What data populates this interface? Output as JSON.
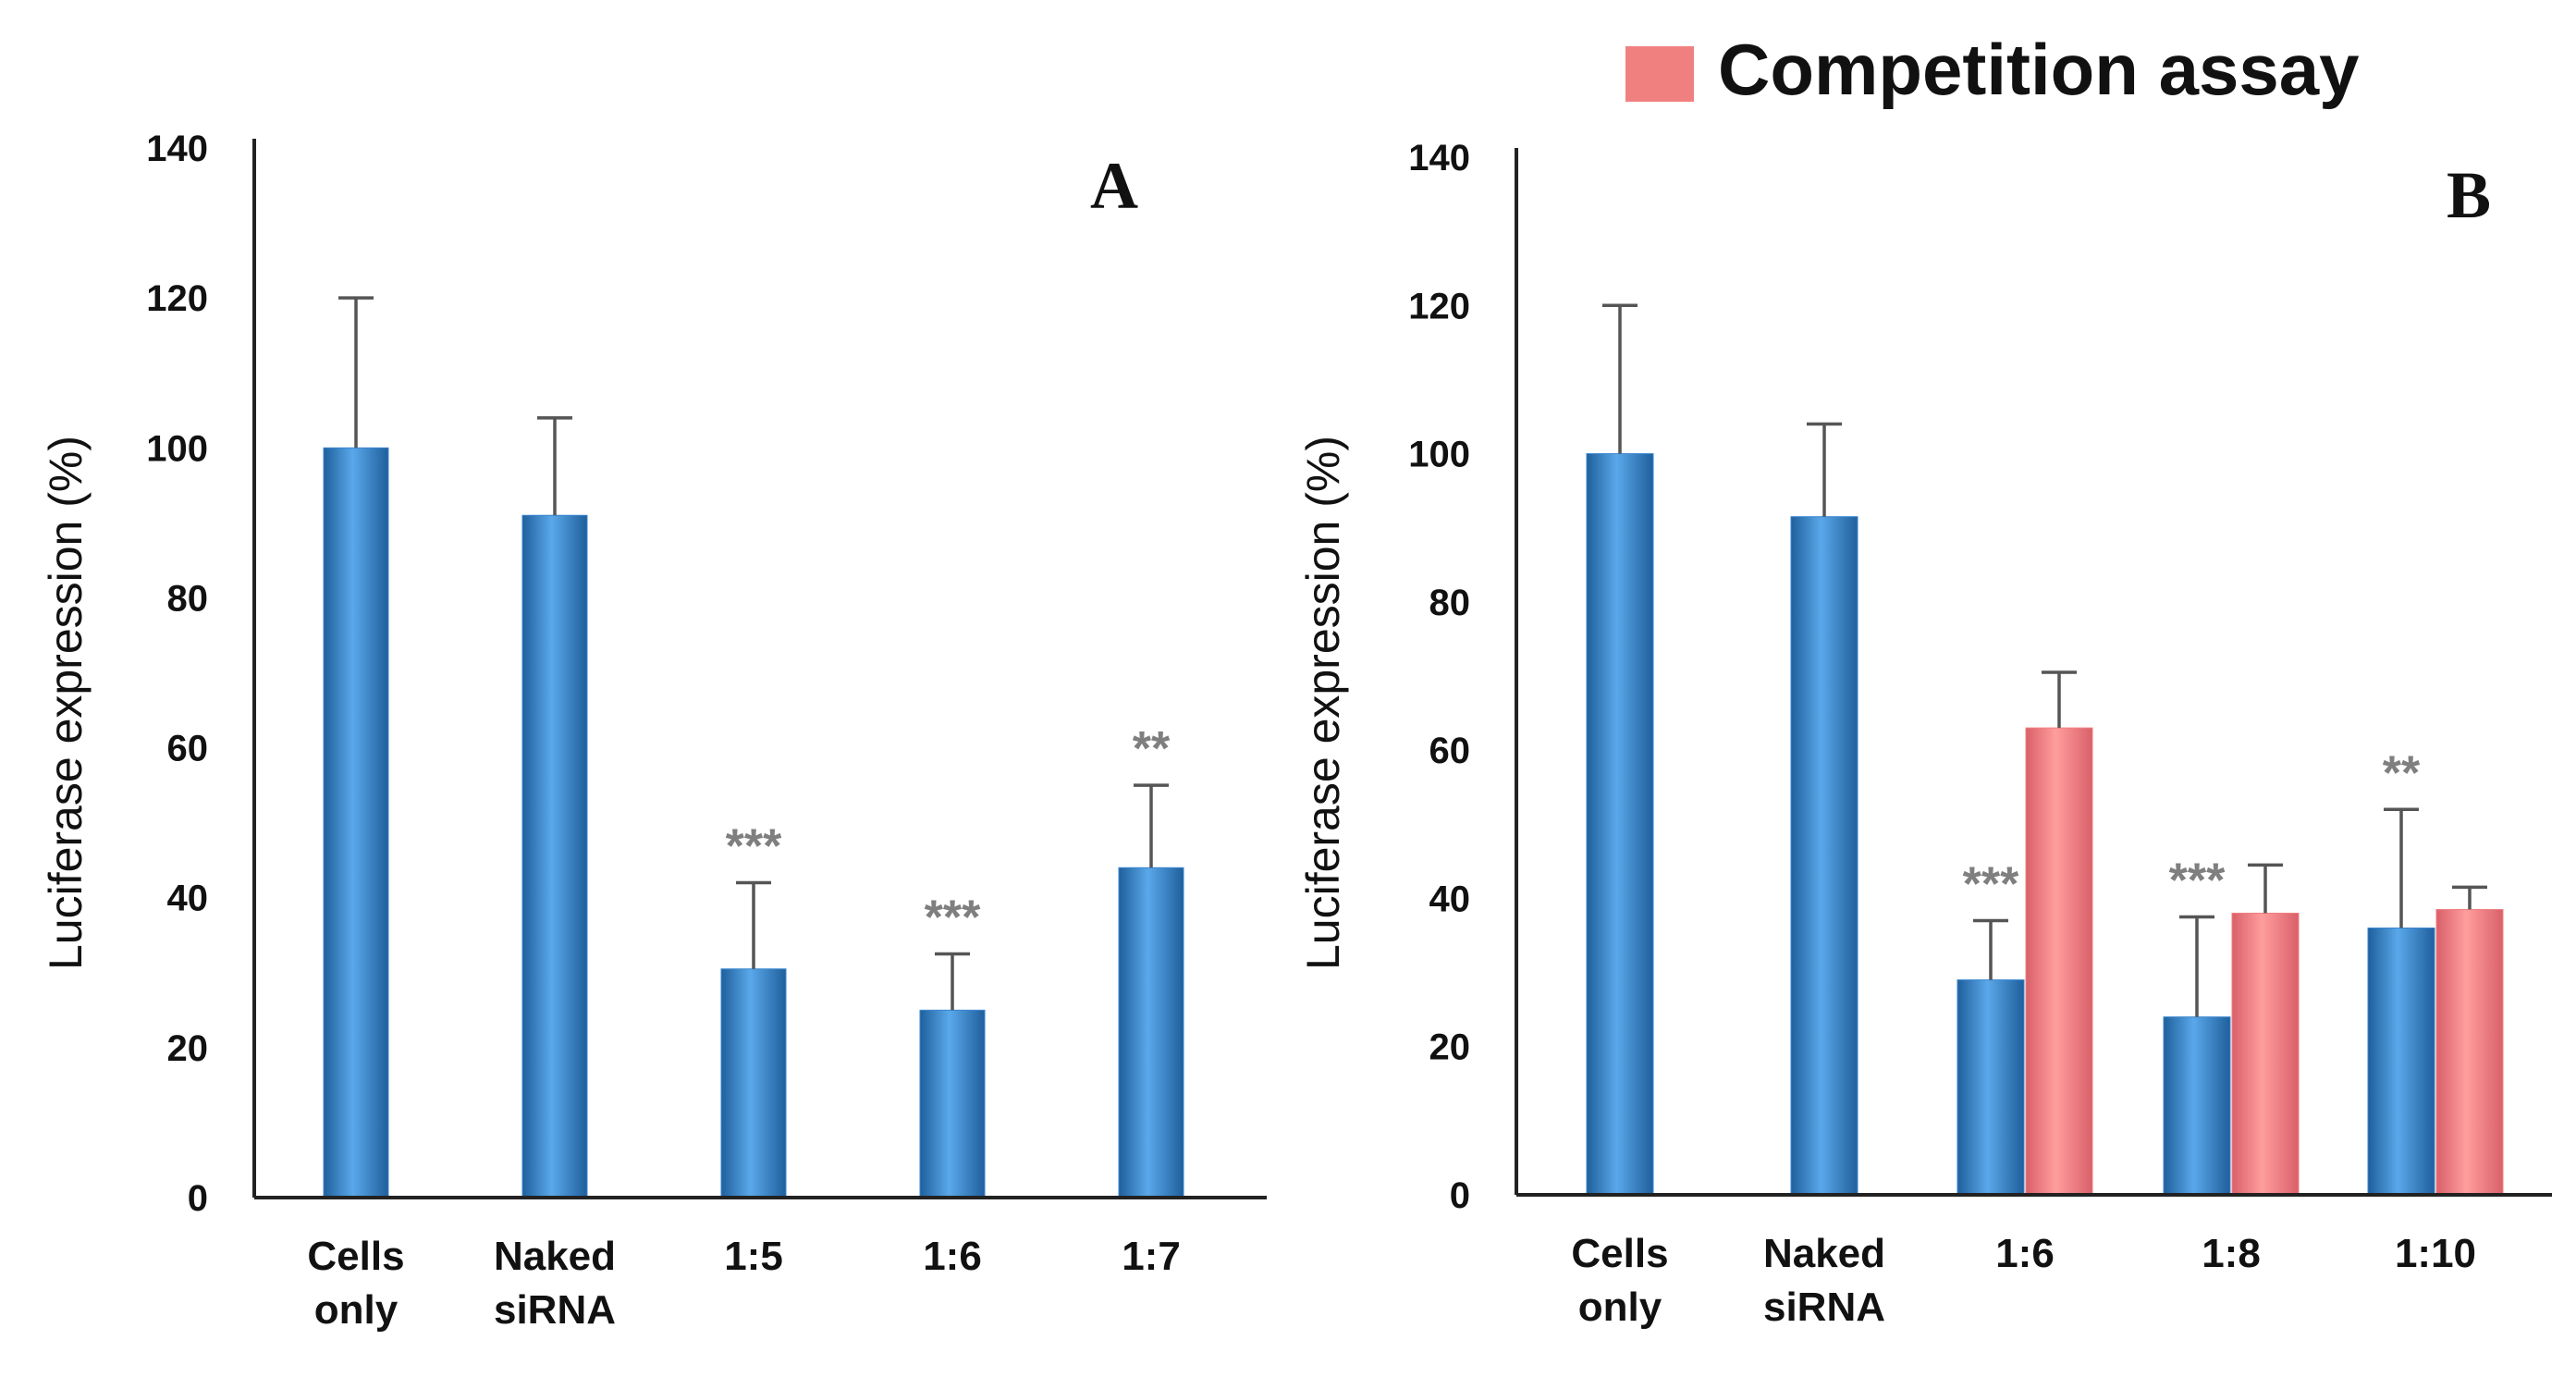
{
  "legend": {
    "label": "Competition assay",
    "color": "#f08080"
  },
  "colors": {
    "primary_bar": "#3a86d0",
    "competition_bar": "#f08080",
    "axis": "#222222",
    "error_bar": "#555555",
    "significance": "#7f7f7f"
  },
  "chart_data": [
    {
      "type": "bar",
      "panel_label": "A",
      "title": "",
      "xlabel": "",
      "ylabel": "Luciferase expression (%)",
      "ylim": [
        0,
        140
      ],
      "yticks": [
        0,
        20,
        40,
        60,
        80,
        100,
        120,
        140
      ],
      "grid": false,
      "categories": [
        [
          "Cells",
          "only"
        ],
        [
          "Naked",
          "siRNA"
        ],
        [
          "1:5"
        ],
        [
          "1:6"
        ],
        [
          "1:7"
        ]
      ],
      "series": [
        {
          "name": "Luciferase expression",
          "color": "#3a86d0",
          "values": [
            100,
            91,
            30.5,
            25,
            44
          ],
          "errors": [
            20,
            13,
            11.5,
            7.5,
            11
          ],
          "significance": [
            "",
            "",
            "***",
            "***",
            "**"
          ]
        }
      ]
    },
    {
      "type": "bar",
      "panel_label": "B",
      "title": "",
      "xlabel": "",
      "ylabel": "Luciferase expression (%)",
      "ylim": [
        0,
        140
      ],
      "yticks": [
        0,
        20,
        40,
        60,
        80,
        100,
        120,
        140
      ],
      "grid": false,
      "legend_position": "top-right",
      "categories": [
        [
          "Cells",
          "only"
        ],
        [
          "Naked",
          "siRNA"
        ],
        [
          "1:6"
        ],
        [
          "1:8"
        ],
        [
          "1:10"
        ]
      ],
      "series": [
        {
          "name": "Luciferase expression",
          "color": "#3a86d0",
          "values": [
            100,
            91.5,
            29,
            24,
            36
          ],
          "errors": [
            20,
            12.5,
            8,
            13.5,
            16
          ],
          "significance": [
            "",
            "",
            "***",
            "***",
            "**"
          ]
        },
        {
          "name": "Competition assay",
          "color": "#f08080",
          "values": [
            null,
            null,
            63,
            38,
            38.5
          ],
          "errors": [
            null,
            null,
            7.5,
            6.5,
            3
          ],
          "significance": [
            "",
            "",
            "",
            "",
            ""
          ]
        }
      ]
    }
  ]
}
